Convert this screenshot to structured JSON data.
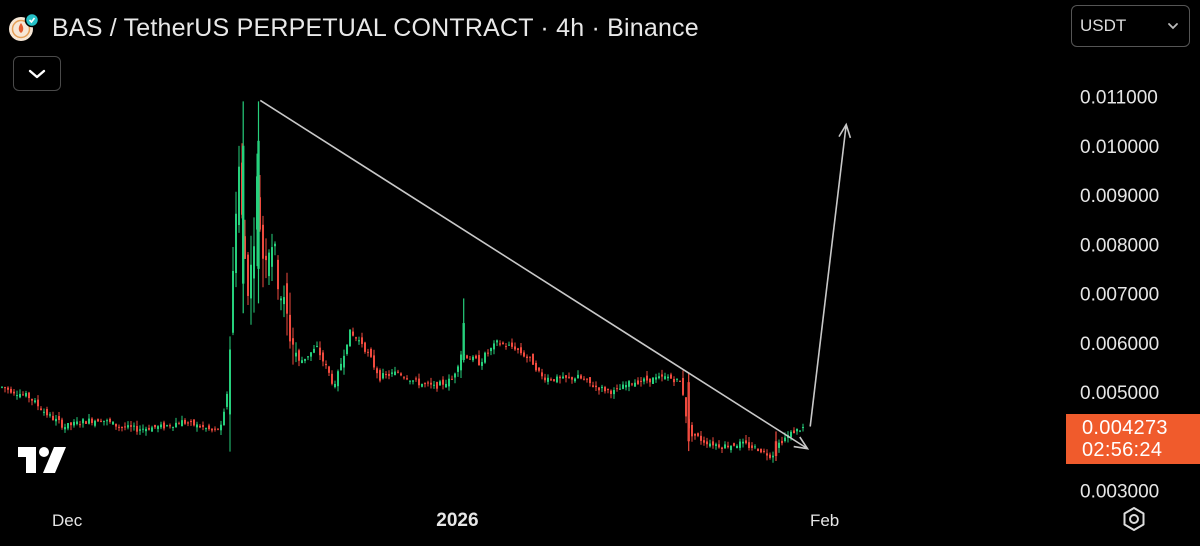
{
  "header": {
    "title": "BAS / TetherUS PERPETUAL CONTRACT · 4h · Binance"
  },
  "currency_selector": {
    "value": "USDT"
  },
  "last_price": {
    "price": "0.004273",
    "countdown": "02:56:24"
  },
  "colors": {
    "up": "#26d07c",
    "down": "#f04a3e",
    "price_tag": "#f05b2c",
    "drawing": "#c8c8c8"
  },
  "icons": [
    "bnb-coin-icon",
    "chevron-down-icon",
    "tradingview-logo-icon",
    "settings-icon"
  ],
  "chart_data": {
    "type": "candlestick",
    "title": "BAS / TetherUS PERPETUAL CONTRACT · 4h · Binance",
    "ylim": [
      0.003,
      0.0115
    ],
    "y_ticks": [
      "0.011000",
      "0.010000",
      "0.009000",
      "0.008000",
      "0.007000",
      "0.006000",
      "0.005000",
      "0.003000"
    ],
    "x_ticks": [
      "Dec",
      "2026",
      "Feb"
    ],
    "x_tick_pos": [
      0.0,
      50.6,
      91.4
    ],
    "bar_count": 94,
    "close_path": [
      [
        0,
        0.0051
      ],
      [
        3,
        0.0049
      ],
      [
        5,
        0.00455
      ],
      [
        7,
        0.0043
      ],
      [
        9,
        0.0044
      ],
      [
        11,
        0.00445
      ],
      [
        13,
        0.0043
      ],
      [
        15,
        0.00425
      ],
      [
        18,
        0.0043
      ],
      [
        20,
        0.0044
      ],
      [
        22,
        0.0043
      ],
      [
        23.5,
        0.0042
      ],
      [
        24.5,
        0.0043
      ],
      [
        25,
        0.005
      ],
      [
        25.5,
        0.0065
      ],
      [
        26.2,
        0.01
      ],
      [
        26.8,
        0.008
      ],
      [
        27.5,
        0.007
      ],
      [
        28.3,
        0.0092
      ],
      [
        29,
        0.0078
      ],
      [
        30,
        0.0081
      ],
      [
        31,
        0.007
      ],
      [
        32,
        0.0062
      ],
      [
        33,
        0.0056
      ],
      [
        35,
        0.0059
      ],
      [
        37,
        0.0051
      ],
      [
        38.5,
        0.0062
      ],
      [
        40,
        0.006
      ],
      [
        42,
        0.0053
      ],
      [
        44,
        0.0054
      ],
      [
        46,
        0.0052
      ],
      [
        48,
        0.0051
      ],
      [
        50,
        0.00525
      ],
      [
        51,
        0.0058
      ],
      [
        53,
        0.0056
      ],
      [
        55,
        0.006
      ],
      [
        57,
        0.0059
      ],
      [
        59,
        0.0056
      ],
      [
        60,
        0.0053
      ],
      [
        62,
        0.00525
      ],
      [
        64,
        0.0053
      ],
      [
        66,
        0.0051
      ],
      [
        68,
        0.005
      ],
      [
        70,
        0.0052
      ],
      [
        72,
        0.00525
      ],
      [
        74,
        0.0053
      ],
      [
        75.5,
        0.0052
      ],
      [
        76.3,
        0.0042
      ],
      [
        78,
        0.004
      ],
      [
        80,
        0.0039
      ],
      [
        82,
        0.00395
      ],
      [
        84,
        0.00385
      ],
      [
        85.5,
        0.0037
      ],
      [
        86.5,
        0.004
      ],
      [
        88,
        0.0042
      ],
      [
        89,
        0.00427
      ]
    ],
    "highlights": [
      {
        "bar": 26.8,
        "high": 0.0109,
        "low": 0.0066,
        "open": 0.0072,
        "close": 0.01
      },
      {
        "bar": 28.5,
        "high": 0.0109,
        "low": 0.0068,
        "open": 0.0075,
        "close": 0.0101
      },
      {
        "bar": 51.3,
        "high": 0.0069,
        "low": 0.0056,
        "open": 0.00565,
        "close": 0.0064
      },
      {
        "bar": 76.3,
        "high": 0.0054,
        "low": 0.0038,
        "open": 0.0052,
        "close": 0.004
      },
      {
        "bar": 86,
        "high": 0.0042,
        "low": 0.0036,
        "open": 0.004,
        "close": 0.0037
      }
    ],
    "drawings": [
      {
        "type": "trendline",
        "from": [
          28.7,
          0.01092
        ],
        "to": [
          89.5,
          0.00385
        ],
        "arrow": true
      },
      {
        "type": "arrow",
        "from": [
          89.8,
          0.0043
        ],
        "to": [
          93.8,
          0.01043
        ]
      }
    ]
  }
}
